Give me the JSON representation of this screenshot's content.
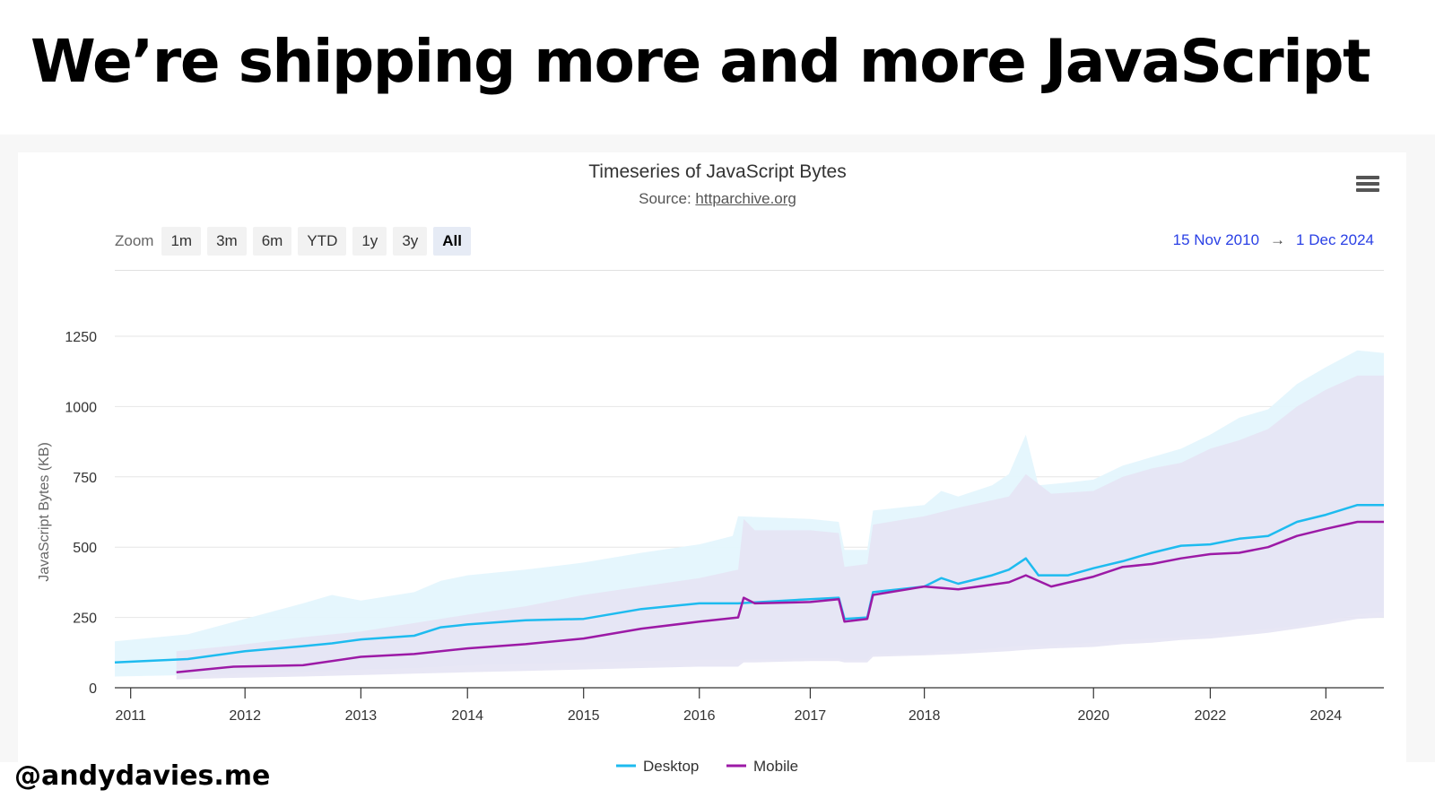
{
  "slide": {
    "title": "We’re shipping more and more JavaScript",
    "handle": "@andydavies.me"
  },
  "chart_ui": {
    "zoom_label": "Zoom",
    "zoom_buttons": [
      "1m",
      "3m",
      "6m",
      "YTD",
      "1y",
      "3y",
      "All"
    ],
    "active_zoom": "All",
    "range_from": "15 Nov 2010",
    "range_arrow": "→",
    "range_to": "1 Dec 2024",
    "accent_color": "#2a40e5",
    "menu_icon": "hamburger-menu-icon"
  },
  "chart_data": {
    "type": "line",
    "title": "Timeseries of JavaScript Bytes",
    "subtitle_prefix": "Source: ",
    "subtitle_link": "httparchive.org",
    "ylabel": "JavaScript Bytes (KB)",
    "xlabel": "",
    "ylim": [
      0,
      1250
    ],
    "yticks": [
      0,
      250,
      500,
      750,
      1000,
      1250
    ],
    "grid": true,
    "legend_position": "bottom-center",
    "xticks": [
      {
        "label": "2011",
        "t": 2011.0
      },
      {
        "label": "2012",
        "t": 2012.0
      },
      {
        "label": "2013",
        "t": 2013.0
      },
      {
        "label": "2014",
        "t": 2014.0
      },
      {
        "label": "2015",
        "t": 2015.0
      },
      {
        "label": "2016",
        "t": 2016.0
      },
      {
        "label": "2017",
        "t": 2017.0
      },
      {
        "label": "2018",
        "t": 2018.0
      },
      {
        "label": "2020",
        "t": 2020.0
      },
      {
        "label": "2022",
        "t": 2022.0
      },
      {
        "label": "2024",
        "t": 2024.0
      }
    ],
    "x_segments": [
      {
        "t": 2010.87,
        "f": 0.0
      },
      {
        "t": 2011.0,
        "f": 0.0125
      },
      {
        "t": 2012.0,
        "f": 0.1026
      },
      {
        "t": 2013.0,
        "f": 0.1939
      },
      {
        "t": 2014.0,
        "f": 0.2779
      },
      {
        "t": 2015.0,
        "f": 0.3694
      },
      {
        "t": 2016.0,
        "f": 0.4606
      },
      {
        "t": 2017.0,
        "f": 0.548
      },
      {
        "t": 2018.0,
        "f": 0.6379
      },
      {
        "t": 2020.0,
        "f": 0.7712
      },
      {
        "t": 2022.0,
        "f": 0.8632
      },
      {
        "t": 2024.0,
        "f": 0.9543
      },
      {
        "t": 2024.92,
        "f": 1.0
      }
    ],
    "series": [
      {
        "name": "Desktop",
        "color": "#1ebbef",
        "band_color": "#e4f6fd",
        "points": [
          [
            2010.87,
            90,
            40,
            165
          ],
          [
            2011.5,
            102,
            45,
            190
          ],
          [
            2012.0,
            130,
            50,
            245
          ],
          [
            2012.5,
            148,
            55,
            300
          ],
          [
            2012.75,
            158,
            60,
            330
          ],
          [
            2013.0,
            172,
            65,
            310
          ],
          [
            2013.5,
            185,
            70,
            340
          ],
          [
            2013.75,
            215,
            75,
            380
          ],
          [
            2014.0,
            225,
            80,
            400
          ],
          [
            2014.5,
            240,
            85,
            420
          ],
          [
            2015.0,
            245,
            90,
            445
          ],
          [
            2015.5,
            280,
            95,
            480
          ],
          [
            2016.0,
            300,
            100,
            510
          ],
          [
            2016.3,
            300,
            100,
            540
          ],
          [
            2016.35,
            300,
            100,
            610
          ],
          [
            2017.0,
            315,
            105,
            600
          ],
          [
            2017.25,
            320,
            105,
            590
          ],
          [
            2017.3,
            245,
            100,
            490
          ],
          [
            2017.5,
            250,
            100,
            490
          ],
          [
            2017.55,
            340,
            120,
            630
          ],
          [
            2018.0,
            360,
            120,
            650
          ],
          [
            2018.2,
            390,
            130,
            700
          ],
          [
            2018.4,
            370,
            130,
            680
          ],
          [
            2018.8,
            400,
            140,
            720
          ],
          [
            2019.0,
            420,
            145,
            760
          ],
          [
            2019.2,
            460,
            150,
            900
          ],
          [
            2019.35,
            400,
            150,
            720
          ],
          [
            2019.7,
            400,
            155,
            730
          ],
          [
            2020.0,
            425,
            160,
            740
          ],
          [
            2020.5,
            450,
            170,
            790
          ],
          [
            2021.0,
            480,
            175,
            820
          ],
          [
            2021.5,
            505,
            180,
            850
          ],
          [
            2022.0,
            510,
            190,
            900
          ],
          [
            2022.5,
            530,
            200,
            960
          ],
          [
            2023.0,
            540,
            210,
            990
          ],
          [
            2023.5,
            590,
            220,
            1080
          ],
          [
            2024.0,
            615,
            240,
            1140
          ],
          [
            2024.5,
            650,
            260,
            1200
          ],
          [
            2024.92,
            650,
            270,
            1190
          ]
        ]
      },
      {
        "name": "Mobile",
        "color": "#9c1aa6",
        "band_color": "#e6e4f4",
        "points": [
          [
            2011.4,
            55,
            30,
            130
          ],
          [
            2011.9,
            75,
            35,
            150
          ],
          [
            2012.5,
            80,
            40,
            180
          ],
          [
            2013.0,
            110,
            45,
            200
          ],
          [
            2013.5,
            120,
            50,
            230
          ],
          [
            2014.0,
            140,
            55,
            260
          ],
          [
            2014.5,
            155,
            60,
            290
          ],
          [
            2015.0,
            175,
            65,
            330
          ],
          [
            2015.5,
            210,
            70,
            360
          ],
          [
            2016.0,
            235,
            75,
            390
          ],
          [
            2016.35,
            250,
            75,
            420
          ],
          [
            2016.4,
            320,
            90,
            600
          ],
          [
            2016.5,
            300,
            90,
            560
          ],
          [
            2017.0,
            305,
            95,
            560
          ],
          [
            2017.25,
            315,
            95,
            550
          ],
          [
            2017.3,
            235,
            90,
            430
          ],
          [
            2017.5,
            245,
            90,
            440
          ],
          [
            2017.55,
            330,
            110,
            580
          ],
          [
            2018.0,
            360,
            115,
            610
          ],
          [
            2018.4,
            350,
            120,
            640
          ],
          [
            2019.0,
            375,
            130,
            680
          ],
          [
            2019.2,
            400,
            135,
            760
          ],
          [
            2019.5,
            360,
            140,
            690
          ],
          [
            2020.0,
            395,
            145,
            700
          ],
          [
            2020.5,
            430,
            155,
            750
          ],
          [
            2021.0,
            440,
            160,
            780
          ],
          [
            2021.5,
            460,
            170,
            800
          ],
          [
            2022.0,
            475,
            175,
            850
          ],
          [
            2022.5,
            480,
            185,
            880
          ],
          [
            2023.0,
            500,
            195,
            920
          ],
          [
            2023.5,
            540,
            210,
            1000
          ],
          [
            2024.0,
            565,
            225,
            1060
          ],
          [
            2024.5,
            590,
            245,
            1110
          ],
          [
            2024.92,
            590,
            250,
            1110
          ]
        ]
      }
    ]
  }
}
